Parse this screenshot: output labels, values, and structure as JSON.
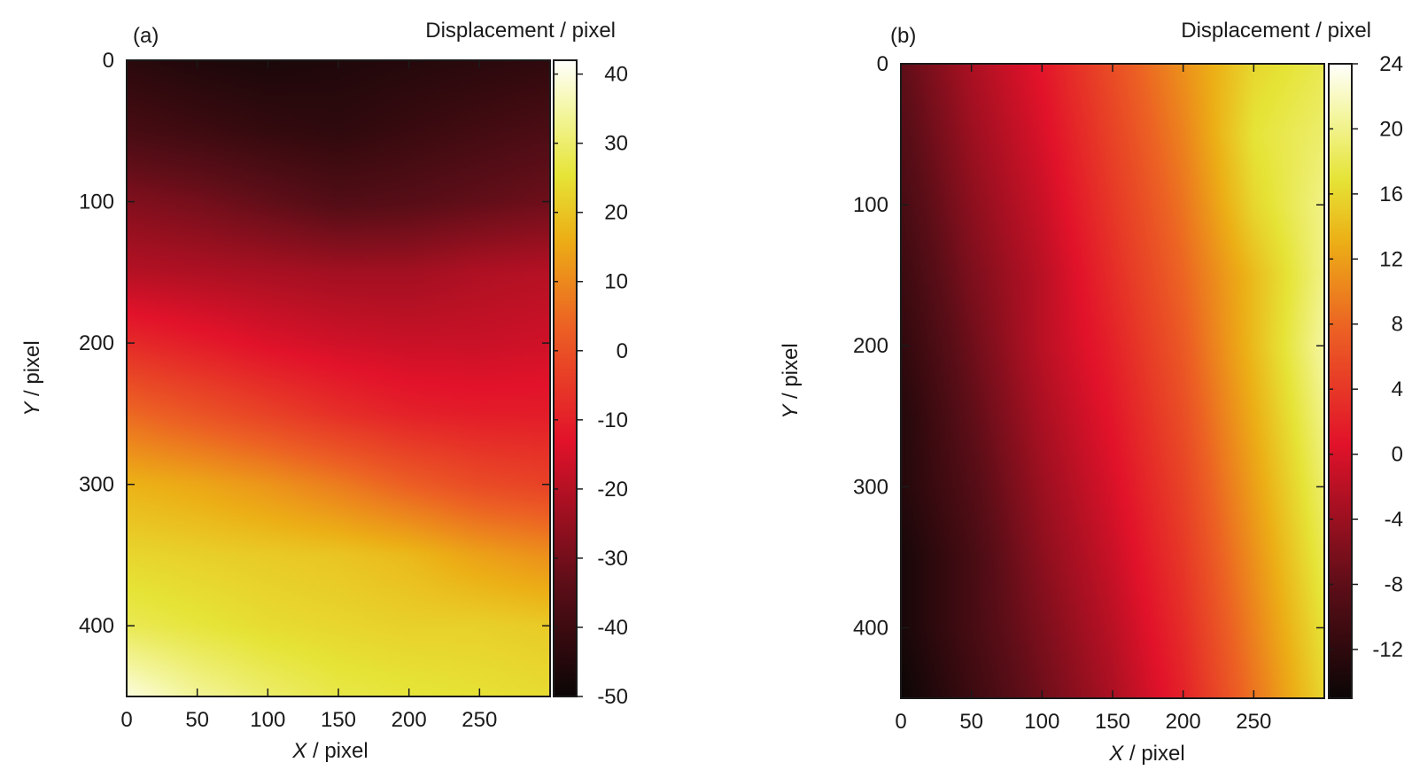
{
  "chart_data": [
    {
      "type": "heatmap",
      "panel_label": "(a)",
      "colorbar_title": "Displacement / pixel",
      "xlabel_var": "X",
      "xlabel_unit": " / pixel",
      "ylabel_var": "Y",
      "ylabel_unit": " / pixel",
      "xlim": [
        0,
        300
      ],
      "ylim": [
        0,
        450
      ],
      "y_inverted": true,
      "xticks": [
        0,
        50,
        100,
        150,
        200,
        250
      ],
      "yticks": [
        0,
        100,
        200,
        300,
        400
      ],
      "clim": [
        -50,
        42
      ],
      "cticks": [
        40,
        30,
        20,
        10,
        0,
        -10,
        -20,
        -30,
        -40,
        -50
      ],
      "colormap": "black-red-yellow-white",
      "grid_x": [
        0,
        50,
        100,
        150,
        200,
        250,
        300
      ],
      "grid_y": [
        0,
        50,
        100,
        150,
        200,
        250,
        300,
        350,
        400,
        450
      ],
      "values": [
        [
          -44,
          -46,
          -47,
          -46,
          -45,
          -44,
          -43
        ],
        [
          -38,
          -40,
          -42,
          -43,
          -41,
          -39,
          -37
        ],
        [
          -28,
          -30,
          -33,
          -36,
          -35,
          -33,
          -31
        ],
        [
          -20,
          -21,
          -22,
          -23,
          -23,
          -21,
          -20
        ],
        [
          -8,
          -11,
          -14,
          -16,
          -17,
          -17,
          -16
        ],
        [
          5,
          1,
          -3,
          -7,
          -10,
          -11,
          -11
        ],
        [
          17,
          15,
          12,
          8,
          3,
          -1,
          -3
        ],
        [
          23,
          22,
          21,
          20,
          18,
          14,
          11
        ],
        [
          28,
          26,
          24,
          23,
          22,
          22,
          21
        ],
        [
          40,
          34,
          30,
          27,
          26,
          25,
          24
        ]
      ]
    },
    {
      "type": "heatmap",
      "panel_label": "(b)",
      "colorbar_title": "Displacement / pixel",
      "xlabel_var": "X",
      "xlabel_unit": " / pixel",
      "ylabel_var": "Y",
      "ylabel_unit": " / pixel",
      "xlim": [
        0,
        300
      ],
      "ylim": [
        0,
        450
      ],
      "y_inverted": true,
      "xticks": [
        0,
        50,
        100,
        150,
        200,
        250
      ],
      "yticks": [
        0,
        100,
        200,
        300,
        400
      ],
      "clim": [
        -15,
        24
      ],
      "cticks": [
        24,
        20,
        16,
        12,
        8,
        4,
        0,
        -4,
        -8,
        -12
      ],
      "colormap": "black-red-yellow-white",
      "grid_x": [
        0,
        50,
        100,
        150,
        200,
        250,
        300
      ],
      "grid_y": [
        0,
        50,
        100,
        150,
        200,
        250,
        300,
        350,
        400,
        450
      ],
      "values": [
        [
          -8,
          -3,
          1,
          6,
          11,
          16,
          18
        ],
        [
          -9,
          -4,
          0,
          5,
          10,
          17,
          19
        ],
        [
          -10,
          -5,
          -1,
          4,
          9,
          16,
          20
        ],
        [
          -11,
          -6,
          -2,
          3,
          8,
          14,
          20
        ],
        [
          -12,
          -7,
          -2,
          2,
          7,
          14,
          21
        ],
        [
          -13,
          -8,
          -3,
          1,
          6,
          13,
          20
        ],
        [
          -13,
          -9,
          -4,
          0,
          5,
          12,
          19
        ],
        [
          -14,
          -10,
          -5,
          -1,
          4,
          11,
          18
        ],
        [
          -14,
          -10,
          -6,
          -2,
          3,
          10,
          17
        ],
        [
          -15,
          -11,
          -7,
          -3,
          2,
          9,
          16
        ]
      ]
    }
  ]
}
